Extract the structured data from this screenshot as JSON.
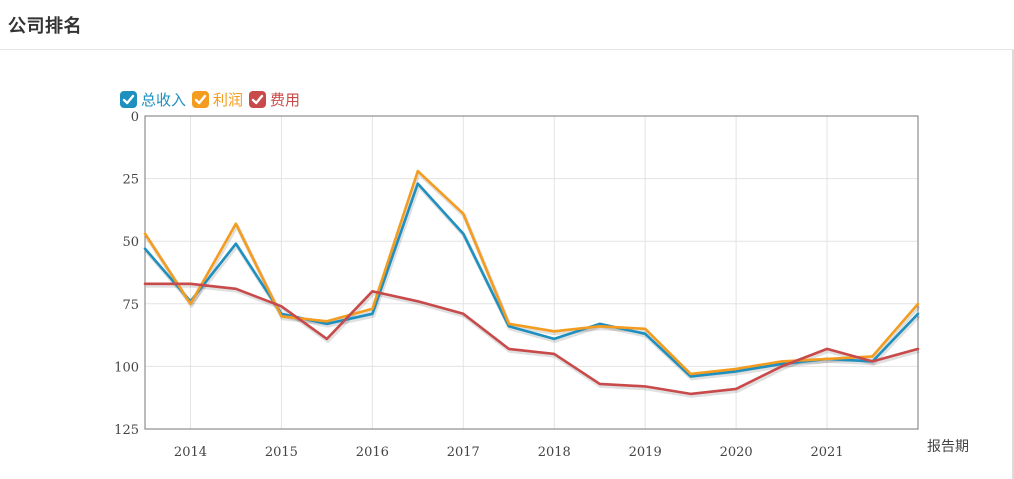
{
  "page": {
    "title": "公司排名"
  },
  "legend": [
    {
      "label": "总收入",
      "color": "#1e90c0",
      "checked": true
    },
    {
      "label": "利润",
      "color": "#f39c1f",
      "checked": true
    },
    {
      "label": "费用",
      "color": "#c94a4a",
      "checked": true
    }
  ],
  "chart_data": {
    "type": "line",
    "xlabel": "报告期",
    "ylabel": "",
    "y_inverted": true,
    "ylim": [
      0,
      125
    ],
    "yticks": [
      "0",
      "25",
      "50",
      "75",
      "100",
      "125"
    ],
    "x_year_labels": [
      "2014",
      "2015",
      "2016",
      "2017",
      "2018",
      "2019",
      "2020",
      "2021"
    ],
    "x": [
      "2013-H2",
      "2014-H1",
      "2014-H2",
      "2015-H1",
      "2015-H2",
      "2016-H1",
      "2016-H2",
      "2017-H1",
      "2017-H2",
      "2018-H1",
      "2018-H2",
      "2019-H1",
      "2019-H2",
      "2020-H1",
      "2020-H2",
      "2021-H1",
      "2021-H2",
      "2022-H1"
    ],
    "grid": true,
    "legend_position": "top-left",
    "series": [
      {
        "name": "总收入",
        "color": "#1e90c0",
        "values": [
          53,
          74,
          51,
          79,
          83,
          79,
          27,
          47,
          84,
          89,
          83,
          87,
          104,
          102,
          99,
          97,
          98,
          79
        ]
      },
      {
        "name": "利润",
        "color": "#f39c1f",
        "values": [
          47,
          75,
          43,
          80,
          82,
          77,
          22,
          39,
          83,
          86,
          84,
          85,
          103,
          101,
          98,
          97,
          96,
          75
        ]
      },
      {
        "name": "费用",
        "color": "#c94a4a",
        "values": [
          67,
          67,
          69,
          76,
          89,
          70,
          74,
          79,
          93,
          95,
          107,
          108,
          111,
          109,
          100,
          93,
          98,
          93
        ]
      }
    ]
  }
}
